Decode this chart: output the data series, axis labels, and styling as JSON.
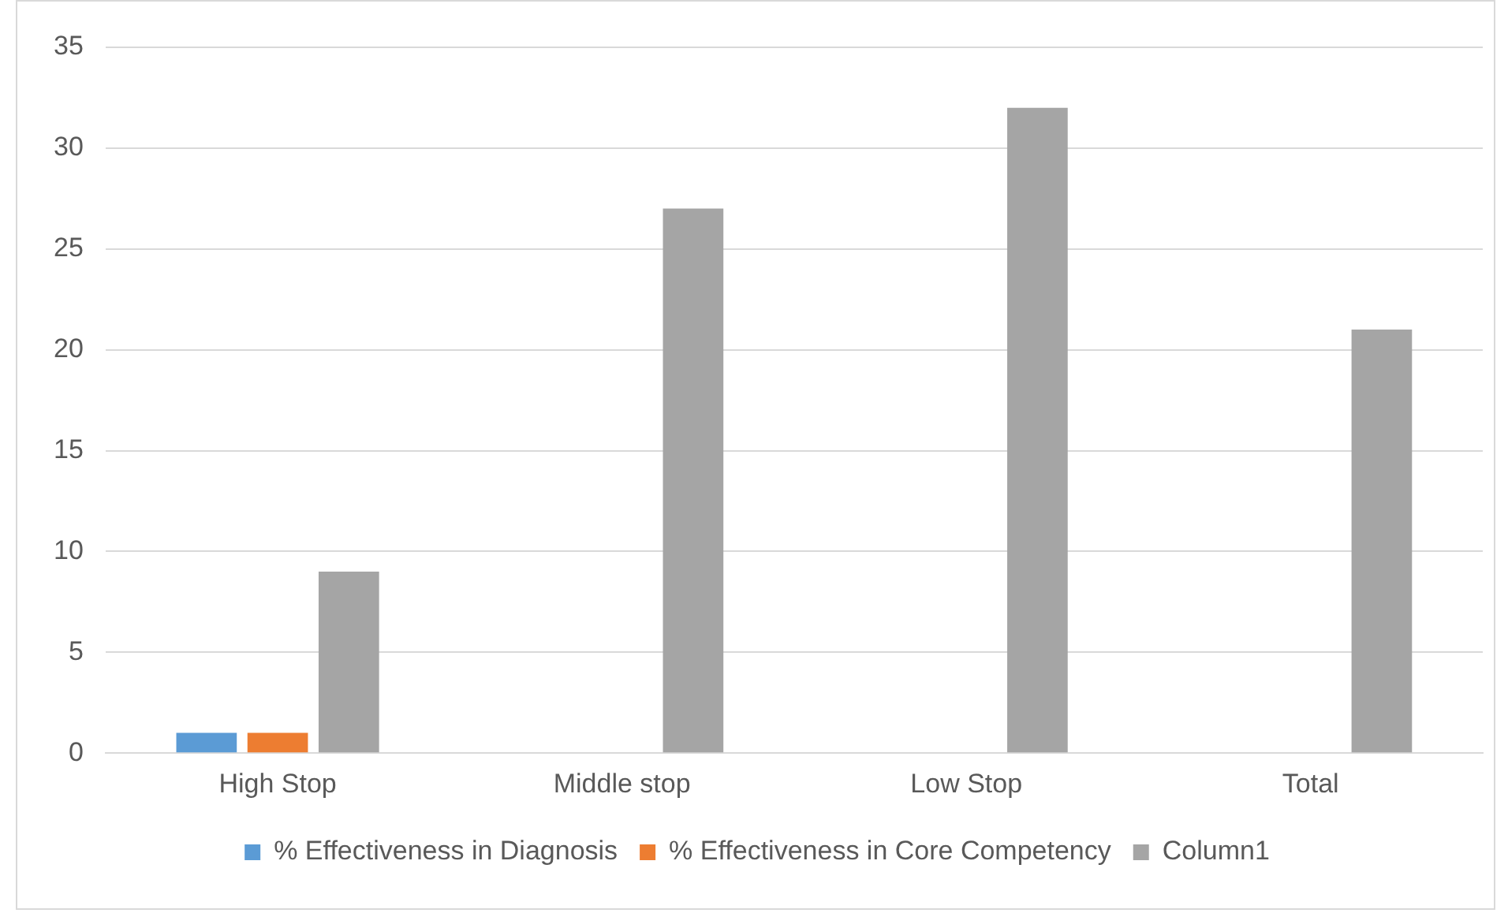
{
  "chart_data": {
    "type": "bar",
    "categories": [
      "High Stop",
      "Middle stop",
      "Low Stop",
      "Total"
    ],
    "series": [
      {
        "name": "% Effectiveness in Diagnosis",
        "color": "#5b9bd5",
        "values": [
          1,
          null,
          null,
          null
        ]
      },
      {
        "name": "% Effectiveness in Core Competency",
        "color": "#ed7d31",
        "values": [
          1,
          null,
          null,
          null
        ]
      },
      {
        "name": "Column1",
        "color": "#a5a5a5",
        "values": [
          9,
          27,
          32,
          21
        ]
      }
    ],
    "ylim": [
      0,
      35
    ],
    "yticks": [
      0,
      5,
      10,
      15,
      20,
      25,
      30,
      35
    ],
    "grid": "y",
    "legend": "bottom"
  }
}
